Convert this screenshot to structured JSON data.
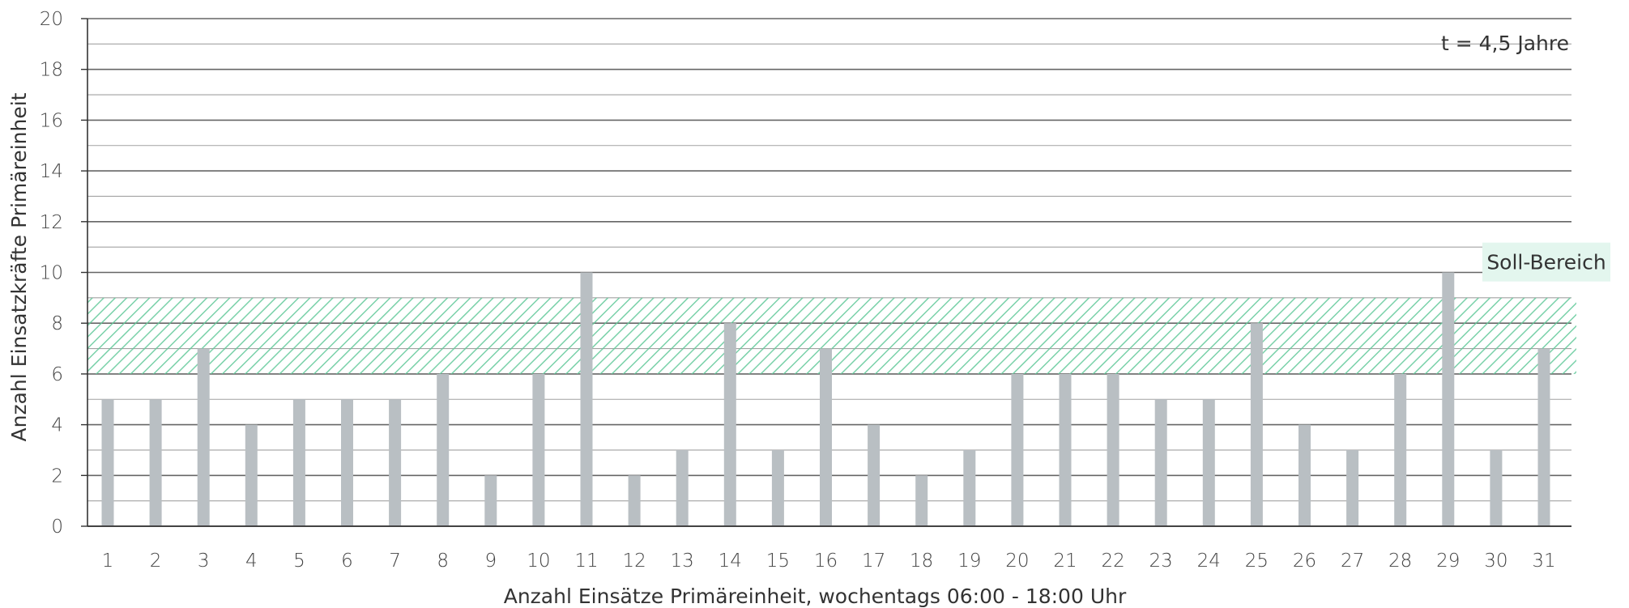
{
  "chart_data": {
    "type": "bar",
    "title": "",
    "xlabel": "Anzahl Einsätze Primäreinheit, wochentags 06:00 - 18:00 Uhr",
    "ylabel": "Anzahl Einsatzkräfte Primäreinheit",
    "ylim": [
      0,
      20
    ],
    "yticks": [
      0,
      2,
      4,
      6,
      8,
      10,
      12,
      14,
      16,
      18,
      20
    ],
    "categories": [
      "1",
      "2",
      "3",
      "4",
      "5",
      "6",
      "7",
      "8",
      "9",
      "10",
      "11",
      "12",
      "13",
      "14",
      "15",
      "16",
      "17",
      "18",
      "19",
      "20",
      "21",
      "22",
      "23",
      "24",
      "25",
      "26",
      "27",
      "28",
      "29",
      "30",
      "31"
    ],
    "values": [
      5,
      5,
      7,
      4,
      5,
      5,
      5,
      6,
      2,
      6,
      10,
      2,
      3,
      8,
      3,
      7,
      4,
      2,
      3,
      6,
      6,
      6,
      5,
      5,
      8,
      4,
      3,
      6,
      10,
      3,
      7
    ],
    "grid": true,
    "target_band": {
      "label": "Soll-Bereich",
      "from": 6,
      "to": 9
    },
    "annotation": "t = 4,5 Jahre",
    "colors": {
      "bar": "#b9bfc3",
      "band_hatch": "#62c99a",
      "band_label_bg": "#e3f6ee",
      "grid": "#555555"
    }
  }
}
